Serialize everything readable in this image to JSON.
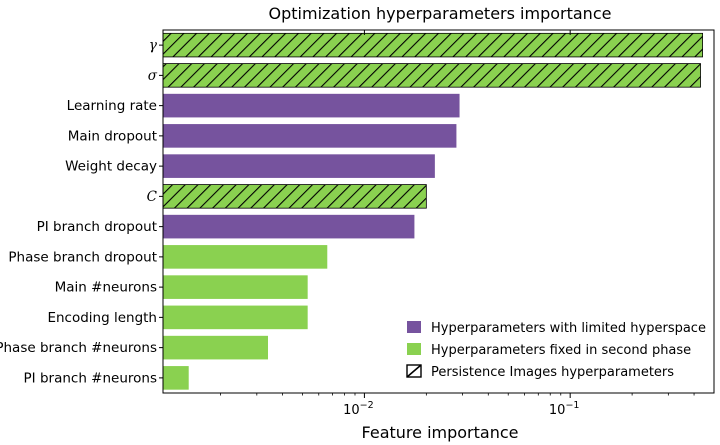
{
  "chart_data": {
    "type": "bar",
    "orientation": "horizontal",
    "title": "Optimization hyperparameters importance",
    "xlabel": "Feature importance",
    "ylabel": "",
    "xscale": "log",
    "xlim": [
      0.00105,
      0.5
    ],
    "xticks": [
      {
        "value": 0.01,
        "base": "10",
        "exp": "−2"
      },
      {
        "value": 0.1,
        "base": "10",
        "exp": "−1"
      }
    ],
    "categories": [
      "γ",
      "σ",
      "Learning rate",
      "Main dropout",
      "Weight decay",
      "C",
      "PI branch dropout",
      "Phase branch dropout",
      "Main #neurons",
      "Encoding length",
      "Phase branch #neurons",
      "PI branch #neurons"
    ],
    "values": [
      0.44,
      0.43,
      0.029,
      0.028,
      0.022,
      0.02,
      0.0175,
      0.0066,
      0.0053,
      0.0053,
      0.0034,
      0.0014
    ],
    "groups": [
      "pi",
      "pi",
      "limited",
      "limited",
      "limited",
      "pi",
      "limited",
      "fixed",
      "fixed",
      "fixed",
      "fixed",
      "fixed"
    ],
    "legend": {
      "position": "lower-right",
      "entries": [
        {
          "key": "limited",
          "label": "Hyperparameters with limited hyperspace"
        },
        {
          "key": "fixed",
          "label": "Hyperparameters fixed in second phase"
        },
        {
          "key": "pi",
          "label": "Persistence Images hyperparameters"
        }
      ]
    },
    "colors": {
      "limited": "#76539e",
      "fixed": "#8ad150",
      "pi_fill": "#8ad150",
      "hatch": "#000000"
    },
    "grid": false
  }
}
